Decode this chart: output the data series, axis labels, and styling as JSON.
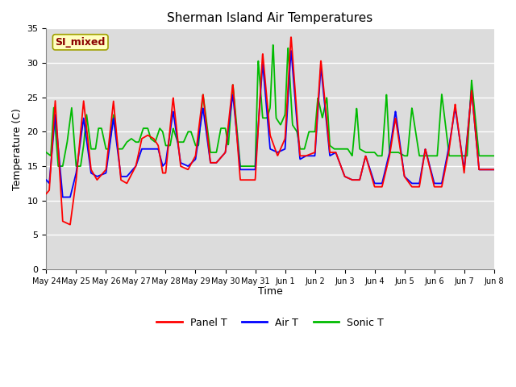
{
  "title": "Sherman Island Air Temperatures",
  "xlabel": "Time",
  "ylabel": "Temperature (C)",
  "ylim": [
    0,
    35
  ],
  "bg_color": "#dcdcdc",
  "label_box_text": "SI_mixed",
  "label_box_color": "#ffffc0",
  "label_box_text_color": "#8b0000",
  "legend_entries": [
    "Panel T",
    "Air T",
    "Sonic T"
  ],
  "line_colors": [
    "red",
    "blue",
    "#00bb00"
  ],
  "tick_labels": [
    "May 24",
    "May 25",
    "May 26",
    "May 27",
    "May 28",
    "May 29",
    "May 30",
    "May 31",
    "Jun 1",
    "Jun 2",
    "Jun 3",
    "Jun 4",
    "Jun 5",
    "Jun 6",
    "Jun 7",
    "Jun 8"
  ],
  "panel_keypoints": [
    [
      0.0,
      11.0
    ],
    [
      0.1,
      11.5
    ],
    [
      0.3,
      24.5
    ],
    [
      0.55,
      7.0
    ],
    [
      0.8,
      6.5
    ],
    [
      1.0,
      13.0
    ],
    [
      1.25,
      24.5
    ],
    [
      1.5,
      14.5
    ],
    [
      1.7,
      13.0
    ],
    [
      2.0,
      14.5
    ],
    [
      2.25,
      24.5
    ],
    [
      2.5,
      13.0
    ],
    [
      2.7,
      12.5
    ],
    [
      3.0,
      15.0
    ],
    [
      3.2,
      19.0
    ],
    [
      3.4,
      19.5
    ],
    [
      3.6,
      19.0
    ],
    [
      3.75,
      18.0
    ],
    [
      3.9,
      14.0
    ],
    [
      4.0,
      14.0
    ],
    [
      4.25,
      25.0
    ],
    [
      4.5,
      15.0
    ],
    [
      4.75,
      14.5
    ],
    [
      5.0,
      16.5
    ],
    [
      5.25,
      25.5
    ],
    [
      5.5,
      15.5
    ],
    [
      5.7,
      15.5
    ],
    [
      6.0,
      17.0
    ],
    [
      6.25,
      27.0
    ],
    [
      6.5,
      13.0
    ],
    [
      6.7,
      13.0
    ],
    [
      7.0,
      13.0
    ],
    [
      7.25,
      31.5
    ],
    [
      7.5,
      19.5
    ],
    [
      7.75,
      16.5
    ],
    [
      8.0,
      19.0
    ],
    [
      8.2,
      34.0
    ],
    [
      8.5,
      16.5
    ],
    [
      8.7,
      16.5
    ],
    [
      9.0,
      17.0
    ],
    [
      9.2,
      30.5
    ],
    [
      9.5,
      17.0
    ],
    [
      9.7,
      17.0
    ],
    [
      10.0,
      13.5
    ],
    [
      10.25,
      13.0
    ],
    [
      10.5,
      13.0
    ],
    [
      10.7,
      16.5
    ],
    [
      11.0,
      12.0
    ],
    [
      11.25,
      12.0
    ],
    [
      11.5,
      16.5
    ],
    [
      11.7,
      22.0
    ],
    [
      12.0,
      13.5
    ],
    [
      12.25,
      12.0
    ],
    [
      12.5,
      12.0
    ],
    [
      12.7,
      17.5
    ],
    [
      13.0,
      12.0
    ],
    [
      13.25,
      12.0
    ],
    [
      13.5,
      17.5
    ],
    [
      13.7,
      24.0
    ],
    [
      14.0,
      14.0
    ],
    [
      14.25,
      26.0
    ],
    [
      14.5,
      14.5
    ],
    [
      14.75,
      14.5
    ],
    [
      15.0,
      14.5
    ]
  ],
  "air_keypoints": [
    [
      0.0,
      13.0
    ],
    [
      0.1,
      12.5
    ],
    [
      0.3,
      22.5
    ],
    [
      0.55,
      10.5
    ],
    [
      0.8,
      10.5
    ],
    [
      1.0,
      14.0
    ],
    [
      1.25,
      22.0
    ],
    [
      1.5,
      14.0
    ],
    [
      1.7,
      13.5
    ],
    [
      2.0,
      14.0
    ],
    [
      2.25,
      22.0
    ],
    [
      2.5,
      13.5
    ],
    [
      2.7,
      13.5
    ],
    [
      3.0,
      15.0
    ],
    [
      3.2,
      17.5
    ],
    [
      3.4,
      17.5
    ],
    [
      3.6,
      17.5
    ],
    [
      3.75,
      17.5
    ],
    [
      3.9,
      15.0
    ],
    [
      4.0,
      15.5
    ],
    [
      4.25,
      23.0
    ],
    [
      4.5,
      15.5
    ],
    [
      4.75,
      15.0
    ],
    [
      5.0,
      16.0
    ],
    [
      5.25,
      23.5
    ],
    [
      5.5,
      15.5
    ],
    [
      5.7,
      15.5
    ],
    [
      6.0,
      17.0
    ],
    [
      6.25,
      25.5
    ],
    [
      6.5,
      14.5
    ],
    [
      6.7,
      14.5
    ],
    [
      7.0,
      14.5
    ],
    [
      7.25,
      30.0
    ],
    [
      7.5,
      17.5
    ],
    [
      7.75,
      17.0
    ],
    [
      8.0,
      17.5
    ],
    [
      8.2,
      32.0
    ],
    [
      8.5,
      16.0
    ],
    [
      8.7,
      16.5
    ],
    [
      9.0,
      16.5
    ],
    [
      9.2,
      29.5
    ],
    [
      9.5,
      16.5
    ],
    [
      9.7,
      17.0
    ],
    [
      10.0,
      13.5
    ],
    [
      10.25,
      13.0
    ],
    [
      10.5,
      13.0
    ],
    [
      10.7,
      16.5
    ],
    [
      11.0,
      12.5
    ],
    [
      11.25,
      12.5
    ],
    [
      11.5,
      17.0
    ],
    [
      11.7,
      23.0
    ],
    [
      12.0,
      13.5
    ],
    [
      12.25,
      12.5
    ],
    [
      12.5,
      12.5
    ],
    [
      12.7,
      17.5
    ],
    [
      13.0,
      12.5
    ],
    [
      13.25,
      12.5
    ],
    [
      13.5,
      18.0
    ],
    [
      13.7,
      23.5
    ],
    [
      14.0,
      14.5
    ],
    [
      14.25,
      26.0
    ],
    [
      14.5,
      14.5
    ],
    [
      14.75,
      14.5
    ],
    [
      15.0,
      14.5
    ]
  ],
  "sonic_keypoints": [
    [
      0.0,
      17.0
    ],
    [
      0.15,
      16.5
    ],
    [
      0.25,
      23.5
    ],
    [
      0.4,
      15.0
    ],
    [
      0.55,
      15.0
    ],
    [
      0.7,
      18.5
    ],
    [
      0.85,
      23.5
    ],
    [
      1.0,
      15.0
    ],
    [
      1.15,
      15.0
    ],
    [
      1.25,
      18.0
    ],
    [
      1.35,
      22.5
    ],
    [
      1.5,
      17.5
    ],
    [
      1.65,
      17.5
    ],
    [
      1.75,
      20.5
    ],
    [
      1.85,
      20.5
    ],
    [
      2.0,
      17.5
    ],
    [
      2.1,
      17.5
    ],
    [
      2.25,
      22.5
    ],
    [
      2.4,
      17.5
    ],
    [
      2.55,
      17.5
    ],
    [
      2.7,
      18.5
    ],
    [
      2.85,
      19.0
    ],
    [
      3.0,
      18.5
    ],
    [
      3.1,
      18.5
    ],
    [
      3.25,
      20.5
    ],
    [
      3.4,
      20.5
    ],
    [
      3.5,
      19.0
    ],
    [
      3.65,
      18.5
    ],
    [
      3.8,
      20.5
    ],
    [
      3.9,
      20.0
    ],
    [
      4.0,
      18.0
    ],
    [
      4.15,
      18.0
    ],
    [
      4.25,
      20.5
    ],
    [
      4.4,
      18.5
    ],
    [
      4.6,
      18.5
    ],
    [
      4.75,
      20.0
    ],
    [
      4.85,
      20.0
    ],
    [
      5.0,
      18.0
    ],
    [
      5.1,
      18.0
    ],
    [
      5.25,
      25.5
    ],
    [
      5.5,
      17.0
    ],
    [
      5.7,
      17.0
    ],
    [
      5.85,
      20.5
    ],
    [
      6.0,
      20.5
    ],
    [
      6.1,
      18.0
    ],
    [
      6.25,
      27.0
    ],
    [
      6.5,
      15.0
    ],
    [
      6.7,
      15.0
    ],
    [
      7.0,
      15.0
    ],
    [
      7.1,
      30.5
    ],
    [
      7.25,
      22.0
    ],
    [
      7.4,
      22.0
    ],
    [
      7.5,
      23.5
    ],
    [
      7.6,
      33.0
    ],
    [
      7.7,
      22.0
    ],
    [
      7.85,
      21.0
    ],
    [
      8.0,
      22.5
    ],
    [
      8.1,
      32.5
    ],
    [
      8.25,
      21.0
    ],
    [
      8.4,
      20.0
    ],
    [
      8.5,
      17.5
    ],
    [
      8.65,
      17.5
    ],
    [
      8.8,
      20.0
    ],
    [
      9.0,
      20.0
    ],
    [
      9.1,
      25.0
    ],
    [
      9.25,
      22.0
    ],
    [
      9.4,
      25.0
    ],
    [
      9.5,
      18.0
    ],
    [
      9.65,
      17.5
    ],
    [
      9.8,
      17.5
    ],
    [
      10.0,
      17.5
    ],
    [
      10.1,
      17.5
    ],
    [
      10.25,
      16.5
    ],
    [
      10.4,
      23.5
    ],
    [
      10.5,
      17.5
    ],
    [
      10.7,
      17.0
    ],
    [
      10.85,
      17.0
    ],
    [
      11.0,
      17.0
    ],
    [
      11.1,
      16.5
    ],
    [
      11.25,
      16.5
    ],
    [
      11.4,
      25.5
    ],
    [
      11.5,
      17.0
    ],
    [
      11.65,
      17.0
    ],
    [
      11.8,
      17.0
    ],
    [
      12.0,
      16.5
    ],
    [
      12.1,
      16.5
    ],
    [
      12.25,
      23.5
    ],
    [
      12.5,
      16.5
    ],
    [
      12.65,
      16.5
    ],
    [
      12.8,
      16.5
    ],
    [
      13.0,
      16.5
    ],
    [
      13.1,
      16.5
    ],
    [
      13.25,
      25.5
    ],
    [
      13.5,
      16.5
    ],
    [
      13.7,
      16.5
    ],
    [
      13.85,
      16.5
    ],
    [
      14.0,
      16.5
    ],
    [
      14.1,
      16.5
    ],
    [
      14.25,
      27.5
    ],
    [
      14.5,
      16.5
    ],
    [
      14.75,
      16.5
    ],
    [
      15.0,
      16.5
    ]
  ]
}
